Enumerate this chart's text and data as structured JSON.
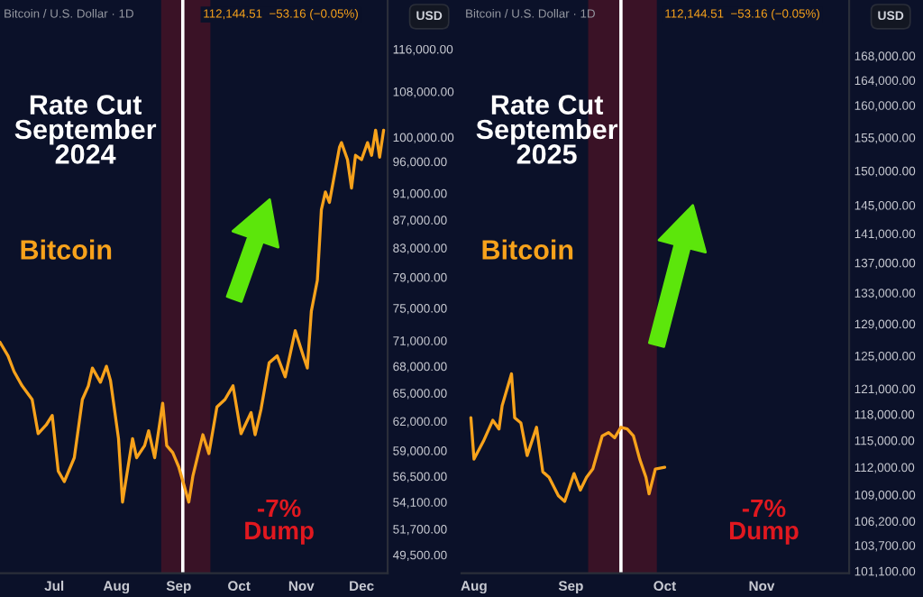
{
  "chart_data": [
    {
      "type": "line",
      "title": "Rate Cut\nSeptember\n2024",
      "subtitle": "Bitcoin / U.S. Dollar · 1D",
      "annotations": [
        "112,144.51  −53.16 (−0.05%)",
        "USD",
        "-7%\nDump"
      ],
      "log": true,
      "grid": false,
      "legend": false,
      "marker": "none",
      "line_style": "solid",
      "series": [
        {
          "name": "Bitcoin",
          "color": "#f7a21b",
          "x": [
            "2024-06-04",
            "2024-06-08",
            "2024-06-11",
            "2024-06-15",
            "2024-06-20",
            "2024-06-23",
            "2024-06-27",
            "2024-06-30",
            "2024-07-03",
            "2024-07-06",
            "2024-07-11",
            "2024-07-15",
            "2024-07-18",
            "2024-07-20",
            "2024-07-24",
            "2024-07-27",
            "2024-07-29",
            "2024-08-02",
            "2024-08-04",
            "2024-08-06",
            "2024-08-09",
            "2024-08-11",
            "2024-08-15",
            "2024-08-17",
            "2024-08-20",
            "2024-08-24",
            "2024-08-26",
            "2024-08-29",
            "2024-09-01",
            "2024-09-06",
            "2024-09-08",
            "2024-09-13",
            "2024-09-16",
            "2024-09-20",
            "2024-09-24",
            "2024-09-28",
            "2024-10-02",
            "2024-10-07",
            "2024-10-09",
            "2024-10-12",
            "2024-10-16",
            "2024-10-20",
            "2024-10-24",
            "2024-10-27",
            "2024-10-29",
            "2024-11-02",
            "2024-11-04",
            "2024-11-06",
            "2024-11-09",
            "2024-11-11",
            "2024-11-13",
            "2024-11-15",
            "2024-11-20",
            "2024-11-21",
            "2024-11-24",
            "2024-11-26",
            "2024-11-28",
            "2024-12-01",
            "2024-12-04",
            "2024-12-06",
            "2024-12-08",
            "2024-12-10",
            "2024-12-12"
          ],
          "values": [
            70800,
            69200,
            67400,
            65800,
            64300,
            60700,
            61600,
            62600,
            57000,
            56000,
            58300,
            64300,
            65800,
            67800,
            66200,
            68000,
            66400,
            60200,
            54100,
            56500,
            60200,
            58300,
            59500,
            61000,
            58300,
            63900,
            59500,
            58800,
            57400,
            54100,
            56500,
            60600,
            58700,
            63500,
            64300,
            65800,
            60700,
            62900,
            60600,
            63300,
            68400,
            69200,
            66800,
            70000,
            72200,
            69200,
            67800,
            74600,
            78600,
            88500,
            91200,
            89600,
            98300,
            99100,
            96300,
            91800,
            97000,
            96300,
            99100,
            97000,
            101200,
            96700,
            101200
          ]
        }
      ],
      "xlim": [
        "2024-06-04",
        "2024-12-14"
      ],
      "xticks": [
        {
          "value": "2024-07-01",
          "label": "Jul"
        },
        {
          "value": "2024-08-01",
          "label": "Aug"
        },
        {
          "value": "2024-09-01",
          "label": "Sep"
        },
        {
          "value": "2024-10-01",
          "label": "Oct"
        },
        {
          "value": "2024-11-01",
          "label": "Nov"
        },
        {
          "value": "2024-12-01",
          "label": "Dec"
        }
      ],
      "ylim": [
        48000,
        126000
      ],
      "yticks": [
        {
          "value": 49500,
          "label": "49,500.00"
        },
        {
          "value": 51700,
          "label": "51,700.00"
        },
        {
          "value": 54100,
          "label": "54,100.00"
        },
        {
          "value": 56500,
          "label": "56,500.00"
        },
        {
          "value": 59000,
          "label": "59,000.00"
        },
        {
          "value": 62000,
          "label": "62,000.00"
        },
        {
          "value": 65000,
          "label": "65,000.00"
        },
        {
          "value": 68000,
          "label": "68,000.00"
        },
        {
          "value": 71000,
          "label": "71,000.00"
        },
        {
          "value": 75000,
          "label": "75,000.00"
        },
        {
          "value": 79000,
          "label": "79,000.00"
        },
        {
          "value": 83000,
          "label": "83,000.00"
        },
        {
          "value": 87000,
          "label": "87,000.00"
        },
        {
          "value": 91000,
          "label": "91,000.00"
        },
        {
          "value": 96000,
          "label": "96,000.00"
        },
        {
          "value": 100000,
          "label": "100,000.00"
        },
        {
          "value": 108000,
          "label": "108,000.00"
        },
        {
          "value": 116000,
          "label": "116,000.00"
        }
      ],
      "ref_lines": [
        {
          "axis": "x",
          "value": "2024-09-03",
          "color": "#ffffff"
        }
      ],
      "bands": [
        {
          "axis": "x",
          "from": "2024-08-24",
          "to": "2024-09-16",
          "color": "#e0181f"
        }
      ]
    },
    {
      "type": "line",
      "title": "Rate Cut\nSeptember\n2025",
      "subtitle": "Bitcoin / U.S. Dollar · 1D",
      "annotations": [
        "112,144.51  −53.16 (−0.05%)",
        "USD",
        "-7%\nDump"
      ],
      "log": true,
      "grid": false,
      "legend": false,
      "marker": "none",
      "line_style": "solid",
      "series": [
        {
          "name": "Bitcoin",
          "color": "#f7a21b",
          "x": [
            "2025-07-31",
            "2025-08-01",
            "2025-08-04",
            "2025-08-07",
            "2025-08-09",
            "2025-08-10",
            "2025-08-13",
            "2025-08-14",
            "2025-08-16",
            "2025-08-18",
            "2025-08-21",
            "2025-08-23",
            "2025-08-25",
            "2025-08-28",
            "2025-08-30",
            "2025-09-02",
            "2025-09-04",
            "2025-09-06",
            "2025-09-08",
            "2025-09-11",
            "2025-09-13",
            "2025-09-15",
            "2025-09-17",
            "2025-09-19",
            "2025-09-21",
            "2025-09-23",
            "2025-09-25",
            "2025-09-26",
            "2025-09-28",
            "2025-10-01"
          ],
          "values": [
            117600,
            112900,
            114900,
            117300,
            116300,
            119000,
            122800,
            117600,
            117000,
            113300,
            116500,
            111500,
            110900,
            108900,
            108300,
            111300,
            109500,
            110900,
            111800,
            115500,
            115900,
            115300,
            116500,
            116300,
            115500,
            112900,
            110900,
            109100,
            111800,
            112000
          ]
        }
      ],
      "xlim": [
        "2025-07-28",
        "2025-11-29"
      ],
      "xticks": [
        {
          "value": "2025-08-01",
          "label": "Aug"
        },
        {
          "value": "2025-09-01",
          "label": "Sep"
        },
        {
          "value": "2025-10-01",
          "label": "Oct"
        },
        {
          "value": "2025-11-01",
          "label": "Nov"
        }
      ],
      "ylim": [
        100900,
        177500
      ],
      "yticks": [
        {
          "value": 101100,
          "label": "101,100.00"
        },
        {
          "value": 103700,
          "label": "103,700.00"
        },
        {
          "value": 106200,
          "label": "106,200.00"
        },
        {
          "value": 109000,
          "label": "109,000.00"
        },
        {
          "value": 112000,
          "label": "112,000.00"
        },
        {
          "value": 115000,
          "label": "115,000.00"
        },
        {
          "value": 118000,
          "label": "118,000.00"
        },
        {
          "value": 121000,
          "label": "121,000.00"
        },
        {
          "value": 125000,
          "label": "125,000.00"
        },
        {
          "value": 129000,
          "label": "129,000.00"
        },
        {
          "value": 133000,
          "label": "133,000.00"
        },
        {
          "value": 137000,
          "label": "137,000.00"
        },
        {
          "value": 141000,
          "label": "141,000.00"
        },
        {
          "value": 145000,
          "label": "145,000.00"
        },
        {
          "value": 150000,
          "label": "150,000.00"
        },
        {
          "value": 155000,
          "label": "155,000.00"
        },
        {
          "value": 160000,
          "label": "160,000.00"
        },
        {
          "value": 164000,
          "label": "164,000.00"
        },
        {
          "value": 168000,
          "label": "168,000.00"
        }
      ],
      "ref_lines": [
        {
          "axis": "x",
          "value": "2025-09-17",
          "color": "#ffffff"
        }
      ],
      "bands": [
        {
          "axis": "x",
          "from": "2025-09-07",
          "to": "2025-09-28",
          "color": "#e0181f"
        }
      ]
    }
  ]
}
